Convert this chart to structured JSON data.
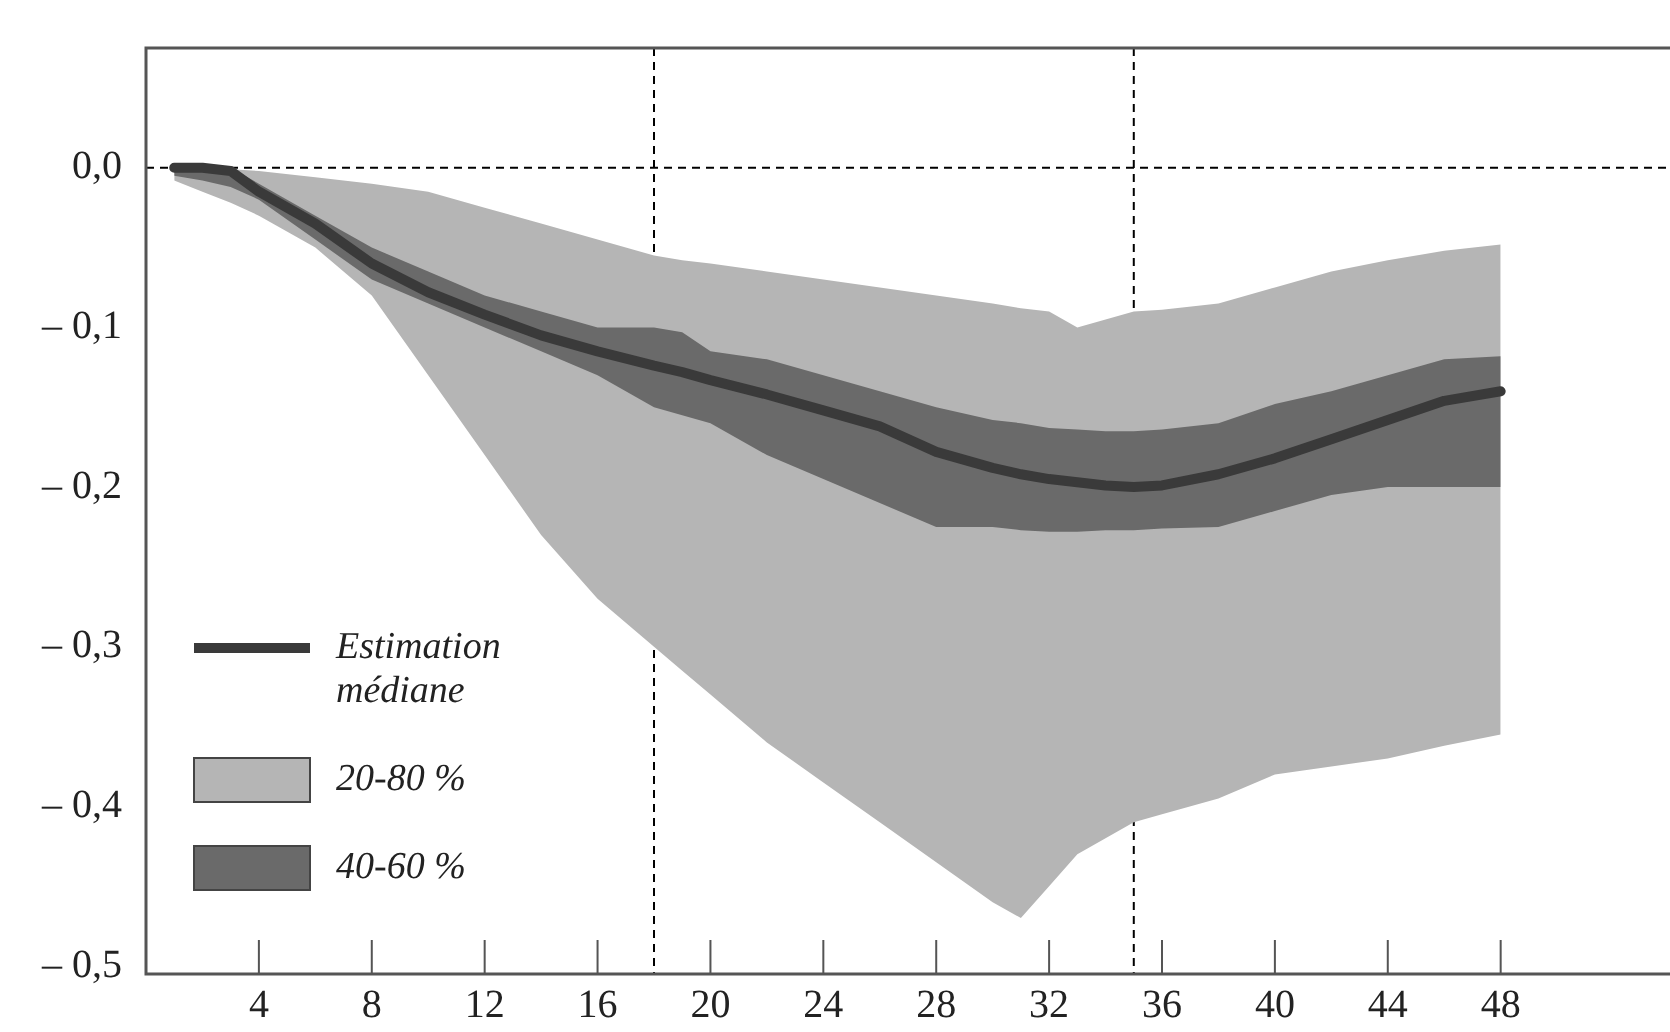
{
  "chart_data": {
    "type": "line",
    "xlim": [
      0,
      54
    ],
    "ylim": [
      -0.505,
      0.075
    ],
    "xticks": [
      4,
      8,
      12,
      16,
      20,
      24,
      28,
      32,
      36,
      40,
      44,
      48
    ],
    "yticks": [
      {
        "value": 0,
        "label": "0,0"
      },
      {
        "value": -0.1,
        "label": "– 0,1"
      },
      {
        "value": -0.2,
        "label": "– 0,2"
      },
      {
        "value": -0.3,
        "label": "– 0,3"
      },
      {
        "value": -0.4,
        "label": "– 0,4"
      },
      {
        "value": -0.5,
        "label": "– 0,5"
      }
    ],
    "grid": false,
    "legend": "bottom left",
    "line_style": "solid",
    "marker": "none",
    "ref_lines": [
      {
        "axis": "y",
        "value": 0,
        "line_style": "dashed",
        "color": "#000000"
      },
      {
        "axis": "x",
        "value": 18,
        "line_style": "dashed",
        "color": "#000000"
      },
      {
        "axis": "x",
        "value": 35,
        "line_style": "dashed",
        "color": "#000000"
      }
    ],
    "x": [
      1,
      2,
      3,
      4,
      6,
      8,
      10,
      12,
      14,
      16,
      18,
      19,
      20,
      22,
      24,
      26,
      28,
      30,
      31,
      32,
      33,
      34,
      35,
      36,
      38,
      40,
      42,
      44,
      46,
      48
    ],
    "series": [
      {
        "name": "Estimation médiane",
        "color": "#3a3a3a",
        "values": [
          0,
          0,
          -0.002,
          -0.015,
          -0.035,
          -0.06,
          -0.078,
          -0.092,
          -0.105,
          -0.115,
          -0.124,
          -0.128,
          -0.133,
          -0.142,
          -0.152,
          -0.162,
          -0.178,
          -0.188,
          -0.192,
          -0.195,
          -0.197,
          -0.199,
          -0.2,
          -0.199,
          -0.192,
          -0.182,
          -0.17,
          -0.158,
          -0.146,
          -0.14
        ]
      },
      {
        "name": "20-80 %",
        "color": "#b5b5b5",
        "values": [
          null,
          null,
          null,
          null,
          null,
          null,
          null,
          null,
          null,
          null,
          null,
          null,
          null,
          null,
          null,
          null,
          null,
          null,
          null,
          null,
          null,
          null,
          null,
          null,
          null,
          null,
          null,
          null,
          null,
          null
        ],
        "upper": [
          0,
          0,
          -0.001,
          -0.002,
          -0.006,
          -0.01,
          -0.015,
          -0.025,
          -0.035,
          -0.045,
          -0.055,
          -0.058,
          -0.06,
          -0.065,
          -0.07,
          -0.075,
          -0.08,
          -0.085,
          -0.088,
          -0.09,
          -0.1,
          -0.095,
          -0.09,
          -0.089,
          -0.085,
          -0.075,
          -0.065,
          -0.058,
          -0.052,
          -0.048
        ],
        "lower": [
          -0.008,
          -0.015,
          -0.022,
          -0.03,
          -0.05,
          -0.08,
          -0.13,
          -0.18,
          -0.23,
          -0.27,
          -0.3,
          -0.315,
          -0.33,
          -0.36,
          -0.385,
          -0.41,
          -0.435,
          -0.46,
          -0.47,
          -0.45,
          -0.43,
          -0.42,
          -0.41,
          -0.405,
          -0.395,
          -0.38,
          -0.375,
          -0.37,
          -0.362,
          -0.355
        ]
      },
      {
        "name": "40-60 %",
        "color": "#6a6a6a",
        "values": [
          null,
          null,
          null,
          null,
          null,
          null,
          null,
          null,
          null,
          null,
          null,
          null,
          null,
          null,
          null,
          null,
          null,
          null,
          null,
          null,
          null,
          null,
          null,
          null,
          null,
          null,
          null,
          null,
          null,
          null
        ],
        "upper": [
          0.002,
          0.002,
          0,
          -0.01,
          -0.03,
          -0.05,
          -0.065,
          -0.08,
          -0.09,
          -0.1,
          -0.1,
          -0.103,
          -0.115,
          -0.12,
          -0.13,
          -0.14,
          -0.15,
          -0.158,
          -0.16,
          -0.163,
          -0.164,
          -0.165,
          -0.165,
          -0.164,
          -0.16,
          -0.148,
          -0.14,
          -0.13,
          -0.12,
          -0.118
        ],
        "lower": [
          -0.005,
          -0.008,
          -0.012,
          -0.02,
          -0.045,
          -0.07,
          -0.085,
          -0.1,
          -0.115,
          -0.13,
          -0.15,
          -0.155,
          -0.16,
          -0.18,
          -0.195,
          -0.21,
          -0.225,
          -0.225,
          -0.227,
          -0.228,
          -0.228,
          -0.227,
          -0.227,
          -0.226,
          -0.225,
          -0.215,
          -0.205,
          -0.2,
          -0.2,
          -0.2
        ]
      }
    ]
  }
}
